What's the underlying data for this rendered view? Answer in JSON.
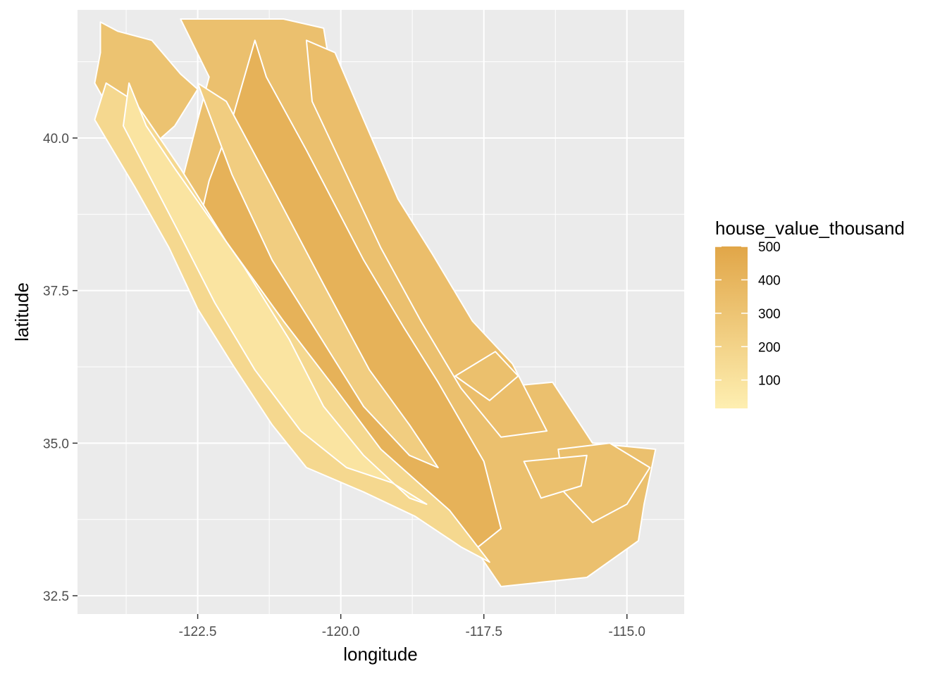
{
  "chart_data": {
    "type": "map",
    "xlabel": "longitude",
    "ylabel": "latitude",
    "xlim": [
      -124.6,
      -114.0
    ],
    "ylim": [
      32.2,
      42.1
    ],
    "xticks": [
      -122.5,
      -120.0,
      -117.5,
      -115.0
    ],
    "xtick_labels": [
      "-122.5",
      "-120.0",
      "-117.5",
      "-115.0"
    ],
    "yticks": [
      32.5,
      35.0,
      37.5,
      40.0
    ],
    "ytick_labels": [
      "32.5",
      "35.0",
      "37.5",
      "40.0"
    ],
    "grid": true,
    "legend": {
      "title": "house_value_thousand",
      "placement": "right",
      "range": [
        15,
        500
      ],
      "breaks": [
        500,
        400,
        300,
        200,
        100
      ],
      "break_labels": [
        "500",
        "400",
        "300",
        "200",
        "100"
      ],
      "color_low": "#FEEFB1",
      "color_high": "#E1A648"
    },
    "regions": [
      {
        "value": 310,
        "coords": [
          [
            -124.2,
            41.9
          ],
          [
            -123.9,
            41.75
          ],
          [
            -123.3,
            41.6
          ],
          [
            -122.8,
            41.05
          ],
          [
            -122.5,
            40.8
          ],
          [
            -122.9,
            40.2
          ],
          [
            -123.5,
            39.7
          ],
          [
            -124.0,
            40.4
          ],
          [
            -124.3,
            40.9
          ],
          [
            -124.2,
            41.4
          ]
        ]
      },
      {
        "value": 325,
        "coords": [
          [
            -122.8,
            41.95
          ],
          [
            -121.0,
            41.95
          ],
          [
            -120.3,
            41.8
          ],
          [
            -120.0,
            40.1
          ],
          [
            -119.3,
            38.8
          ],
          [
            -118.7,
            37.6
          ],
          [
            -118.3,
            37.1
          ],
          [
            -117.4,
            35.9
          ],
          [
            -116.3,
            36.0
          ],
          [
            -115.6,
            35.0
          ],
          [
            -114.5,
            34.9
          ],
          [
            -114.7,
            34.0
          ],
          [
            -114.8,
            33.4
          ],
          [
            -115.7,
            32.8
          ],
          [
            -117.2,
            32.65
          ],
          [
            -117.6,
            33.2
          ],
          [
            -118.4,
            34.0
          ],
          [
            -119.2,
            34.4
          ],
          [
            -120.4,
            34.6
          ],
          [
            -120.9,
            35.4
          ],
          [
            -121.7,
            36.4
          ],
          [
            -122.2,
            37.4
          ],
          [
            -122.6,
            38.4
          ],
          [
            -122.8,
            39.2
          ],
          [
            -122.5,
            40.3
          ],
          [
            -122.3,
            41.0
          ]
        ]
      },
      {
        "value": 420,
        "coords": [
          [
            -121.5,
            41.6
          ],
          [
            -121.3,
            41.0
          ],
          [
            -120.6,
            39.8
          ],
          [
            -119.6,
            38.0
          ],
          [
            -118.9,
            36.9
          ],
          [
            -118.3,
            36.0
          ],
          [
            -117.5,
            34.7
          ],
          [
            -117.2,
            33.6
          ],
          [
            -117.6,
            33.3
          ],
          [
            -118.3,
            33.8
          ],
          [
            -118.9,
            34.2
          ],
          [
            -119.6,
            34.4
          ],
          [
            -120.4,
            34.7
          ],
          [
            -120.9,
            35.6
          ],
          [
            -121.6,
            36.6
          ],
          [
            -122.2,
            37.5
          ],
          [
            -122.5,
            38.5
          ],
          [
            -122.3,
            39.3
          ],
          [
            -121.9,
            40.3
          ]
        ]
      },
      {
        "value": 170,
        "coords": [
          [
            -124.1,
            40.9
          ],
          [
            -123.6,
            40.6
          ],
          [
            -122.8,
            39.5
          ],
          [
            -122.0,
            38.3
          ],
          [
            -121.0,
            37.0
          ],
          [
            -120.1,
            35.9
          ],
          [
            -119.3,
            34.9
          ],
          [
            -118.1,
            33.9
          ],
          [
            -117.4,
            33.05
          ],
          [
            -117.9,
            33.3
          ],
          [
            -118.7,
            33.8
          ],
          [
            -119.6,
            34.2
          ],
          [
            -120.6,
            34.6
          ],
          [
            -121.2,
            35.3
          ],
          [
            -121.9,
            36.3
          ],
          [
            -122.5,
            37.2
          ],
          [
            -123.0,
            38.2
          ],
          [
            -123.6,
            39.2
          ],
          [
            -124.3,
            40.3
          ]
        ]
      },
      {
        "value": 90,
        "coords": [
          [
            -123.7,
            40.9
          ],
          [
            -123.4,
            40.2
          ],
          [
            -122.9,
            39.5
          ],
          [
            -122.3,
            38.7
          ],
          [
            -121.7,
            37.9
          ],
          [
            -120.9,
            36.7
          ],
          [
            -120.3,
            35.6
          ],
          [
            -119.6,
            34.8
          ],
          [
            -118.8,
            34.1
          ],
          [
            -118.5,
            34.0
          ],
          [
            -119.1,
            34.35
          ],
          [
            -119.9,
            34.6
          ],
          [
            -120.7,
            35.2
          ],
          [
            -121.5,
            36.2
          ],
          [
            -122.2,
            37.3
          ],
          [
            -122.8,
            38.4
          ],
          [
            -123.3,
            39.3
          ],
          [
            -123.8,
            40.2
          ]
        ]
      },
      {
        "value": 340,
        "coords": [
          [
            -120.6,
            41.6
          ],
          [
            -120.1,
            41.4
          ],
          [
            -119.6,
            40.3
          ],
          [
            -119.0,
            39.0
          ],
          [
            -118.4,
            38.1
          ],
          [
            -117.7,
            37.0
          ],
          [
            -117.0,
            36.3
          ],
          [
            -116.4,
            35.2
          ],
          [
            -117.2,
            35.1
          ],
          [
            -117.9,
            35.9
          ],
          [
            -118.6,
            37.0
          ],
          [
            -119.3,
            38.2
          ],
          [
            -119.9,
            39.4
          ],
          [
            -120.5,
            40.6
          ]
        ]
      },
      {
        "value": 240,
        "coords": [
          [
            -122.5,
            40.9
          ],
          [
            -122.0,
            40.6
          ],
          [
            -121.2,
            39.2
          ],
          [
            -120.3,
            37.6
          ],
          [
            -119.5,
            36.2
          ],
          [
            -118.8,
            35.3
          ],
          [
            -118.3,
            34.6
          ],
          [
            -118.8,
            34.8
          ],
          [
            -119.6,
            35.6
          ],
          [
            -120.4,
            36.8
          ],
          [
            -121.2,
            38.0
          ],
          [
            -121.9,
            39.4
          ]
        ]
      },
      {
        "value": 330,
        "coords": [
          [
            -116.2,
            34.9
          ],
          [
            -115.3,
            35.0
          ],
          [
            -114.6,
            34.6
          ],
          [
            -115.0,
            34.0
          ],
          [
            -115.6,
            33.7
          ],
          [
            -116.1,
            34.2
          ]
        ]
      },
      {
        "value": 330,
        "coords": [
          [
            -118.0,
            36.1
          ],
          [
            -117.3,
            36.5
          ],
          [
            -116.9,
            36.1
          ],
          [
            -117.4,
            35.7
          ]
        ]
      },
      {
        "value": 330,
        "coords": [
          [
            -116.8,
            34.7
          ],
          [
            -115.7,
            34.8
          ],
          [
            -115.8,
            34.3
          ],
          [
            -116.5,
            34.1
          ]
        ]
      }
    ]
  }
}
